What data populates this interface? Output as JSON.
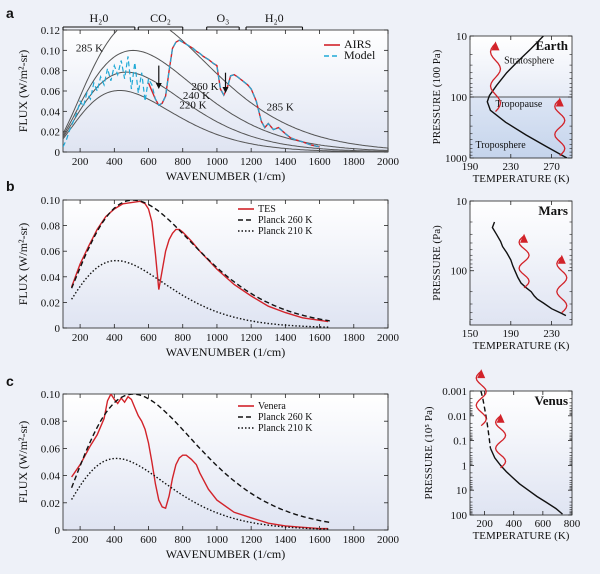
{
  "panel_labels": [
    "a",
    "b",
    "c"
  ],
  "bands": [
    {
      "label": "H₂0",
      "x1": 100,
      "x2": 520
    },
    {
      "label": "CO₂",
      "x1": 540,
      "x2": 800
    },
    {
      "label": "O₃",
      "x1": 940,
      "x2": 1130
    },
    {
      "label": "H₂0",
      "x1": 1170,
      "x2": 1500
    }
  ],
  "colors": {
    "red": "#d2232a",
    "cyan": "#1fa9d6",
    "black": "#111111",
    "gray": "#555555"
  },
  "chart_data": [
    {
      "id": "earth-spectrum",
      "type": "line",
      "xlabel": "WAVENUMBER (1/cm)",
      "ylabel": "FLUX (W/m²-sr)",
      "xlim": [
        100,
        2000
      ],
      "ylim": [
        0,
        0.12
      ],
      "xticks": [
        200,
        400,
        600,
        800,
        1000,
        1200,
        1400,
        1600,
        1800,
        2000
      ],
      "yticks": [
        0,
        0.02,
        0.04,
        0.06,
        0.08,
        0.1,
        0.12
      ],
      "ytick_labels": [
        "0",
        "0.02",
        "0.04",
        "0.06",
        "0.08",
        "0.10",
        "0.12"
      ],
      "planck_curves": [
        285,
        260,
        240,
        220
      ],
      "planck_labels": [
        {
          "text": "285 K",
          "x": 255,
          "y": 0.099
        },
        {
          "text": "260 K",
          "x": 930,
          "y": 0.061
        },
        {
          "text": "240 K",
          "x": 880,
          "y": 0.052
        },
        {
          "text": "220 K",
          "x": 860,
          "y": 0.043
        },
        {
          "text": "285 K",
          "x": 1370,
          "y": 0.041
        }
      ],
      "arrows": [
        {
          "x": 660,
          "y_from": 0.085,
          "y_to": 0.062
        },
        {
          "x": 1050,
          "y_from": 0.078,
          "y_to": 0.058
        }
      ],
      "legend": [
        "AIRS",
        "Model"
      ],
      "series": [
        {
          "name": "AIRS",
          "color": "#d2232a",
          "style": "solid",
          "x": [
            600,
            620,
            640,
            660,
            680,
            700,
            720,
            740,
            760,
            780,
            800,
            820,
            840,
            860,
            880,
            900,
            920,
            950,
            980,
            1000,
            1020,
            1040,
            1060,
            1080,
            1100,
            1120,
            1150,
            1180,
            1200,
            1230,
            1260,
            1280,
            1300,
            1330,
            1360,
            1400,
            1430,
            1460,
            1500,
            1550,
            1600
          ],
          "y": [
            0.068,
            0.06,
            0.052,
            0.046,
            0.048,
            0.055,
            0.08,
            0.102,
            0.108,
            0.11,
            0.108,
            0.106,
            0.104,
            0.102,
            0.099,
            0.097,
            0.094,
            0.091,
            0.087,
            0.085,
            0.062,
            0.056,
            0.063,
            0.075,
            0.076,
            0.074,
            0.07,
            0.066,
            0.062,
            0.05,
            0.03,
            0.024,
            0.028,
            0.022,
            0.024,
            0.018,
            0.014,
            0.012,
            0.01,
            0.007,
            0.005
          ]
        },
        {
          "name": "Model",
          "color": "#1fa9d6",
          "style": "dashed",
          "x": [
            100,
            120,
            140,
            160,
            180,
            200,
            220,
            240,
            260,
            280,
            300,
            320,
            340,
            360,
            380,
            400,
            420,
            440,
            460,
            480,
            500,
            520,
            540,
            560,
            580,
            600,
            620,
            640,
            660,
            680,
            700,
            720,
            740,
            760,
            780,
            800,
            820,
            840,
            860,
            880,
            900,
            920,
            950,
            980,
            1000,
            1020,
            1040,
            1060,
            1080,
            1100,
            1120,
            1150,
            1180,
            1200,
            1230,
            1260,
            1280,
            1300,
            1330,
            1360,
            1400,
            1430,
            1460,
            1500,
            1550,
            1600
          ],
          "y": [
            0.005,
            0.012,
            0.022,
            0.03,
            0.038,
            0.05,
            0.045,
            0.058,
            0.052,
            0.068,
            0.06,
            0.074,
            0.066,
            0.082,
            0.07,
            0.085,
            0.076,
            0.09,
            0.072,
            0.094,
            0.062,
            0.088,
            0.058,
            0.078,
            0.05,
            0.072,
            0.066,
            0.052,
            0.046,
            0.048,
            0.055,
            0.08,
            0.102,
            0.108,
            0.11,
            0.108,
            0.106,
            0.104,
            0.102,
            0.099,
            0.097,
            0.094,
            0.091,
            0.087,
            0.085,
            0.062,
            0.056,
            0.063,
            0.075,
            0.076,
            0.074,
            0.07,
            0.066,
            0.062,
            0.05,
            0.03,
            0.024,
            0.028,
            0.022,
            0.024,
            0.018,
            0.014,
            0.012,
            0.01,
            0.007,
            0.005
          ]
        }
      ]
    },
    {
      "id": "earth-profile",
      "type": "line",
      "title": "Earth",
      "xlabel": "TEMPERATURE (K)",
      "ylabel": "PRESSURE (100 Pa)",
      "xlim": [
        190,
        290
      ],
      "ylim": [
        10,
        1000
      ],
      "yscale": "log",
      "xticks": [
        190,
        230,
        270
      ],
      "yticks": [
        10,
        100,
        1000
      ],
      "annotations": [
        {
          "text": "Stratosphere",
          "x": 248,
          "y": 28,
          "color": "#111111"
        },
        {
          "text": "Tropopause",
          "x": 238,
          "y": 145,
          "color": "#d2232a"
        },
        {
          "text": "Troposphere",
          "x": 220,
          "y": 680,
          "color": "#111111"
        }
      ],
      "tropopause_pressure": 100,
      "series": [
        {
          "name": "",
          "color": "#111111",
          "x": [
            262,
            250,
            238,
            226,
            216,
            209,
            207,
            210,
            225,
            245,
            265,
            285
          ],
          "y": [
            10,
            16,
            25,
            40,
            65,
            95,
            120,
            165,
            260,
            420,
            650,
            1000
          ]
        }
      ]
    },
    {
      "id": "mars-spectrum",
      "type": "line",
      "xlabel": "WAVENUMBER (1/cm)",
      "ylabel": "FLUX (W/m²-sr)",
      "xlim": [
        100,
        2000
      ],
      "ylim": [
        0,
        0.1
      ],
      "xticks": [
        200,
        400,
        600,
        800,
        1000,
        1200,
        1400,
        1600,
        1800,
        2000
      ],
      "yticks": [
        0,
        0.02,
        0.04,
        0.06,
        0.08,
        0.1
      ],
      "ytick_labels": [
        "0",
        "0.02",
        "0.04",
        "0.06",
        "0.08",
        "0.10"
      ],
      "legend": [
        "TES",
        "Planck 260 K",
        "Planck 210 K"
      ],
      "series": [
        {
          "name": "TES",
          "color": "#d2232a",
          "style": "solid",
          "x": [
            150,
            200,
            250,
            300,
            350,
            400,
            450,
            500,
            550,
            580,
            600,
            620,
            640,
            660,
            680,
            700,
            720,
            740,
            760,
            780,
            800,
            850,
            900,
            950,
            1000,
            1100,
            1200,
            1300,
            1400,
            1500,
            1600,
            1650
          ],
          "y": [
            0.032,
            0.05,
            0.064,
            0.077,
            0.087,
            0.093,
            0.097,
            0.098,
            0.099,
            0.097,
            0.093,
            0.083,
            0.058,
            0.03,
            0.045,
            0.06,
            0.069,
            0.074,
            0.077,
            0.077,
            0.075,
            0.068,
            0.06,
            0.053,
            0.046,
            0.034,
            0.025,
            0.017,
            0.012,
            0.008,
            0.006,
            0.005
          ]
        },
        {
          "name": "Planck 260 K",
          "color": "#111111",
          "style": "dashed",
          "temperature": 260
        },
        {
          "name": "Planck 210 K",
          "color": "#111111",
          "style": "dotted",
          "temperature": 210
        }
      ]
    },
    {
      "id": "mars-profile",
      "type": "line",
      "title": "Mars",
      "xlabel": "TEMPERATURE (K)",
      "ylabel": "PRESSURE (Pa)",
      "xlim": [
        150,
        250
      ],
      "ylim": [
        10,
        600
      ],
      "yscale": "log",
      "xticks": [
        150,
        190,
        230
      ],
      "yticks": [
        10,
        100
      ],
      "series": [
        {
          "name": "",
          "color": "#111111",
          "x": [
            174,
            172,
            176,
            180,
            182,
            186,
            190,
            192,
            194,
            197,
            200,
            205,
            210,
            213,
            216,
            222,
            230,
            240,
            244
          ],
          "y": [
            20,
            24,
            30,
            38,
            45,
            55,
            70,
            85,
            100,
            125,
            150,
            175,
            200,
            230,
            255,
            290,
            350,
            410,
            440
          ]
        }
      ]
    },
    {
      "id": "venus-spectrum",
      "type": "line",
      "xlabel": "WAVENUMBER (1/cm)",
      "ylabel": "FLUX (W/m²-sr)",
      "xlim": [
        100,
        2000
      ],
      "ylim": [
        0,
        0.1
      ],
      "xticks": [
        200,
        400,
        600,
        800,
        1000,
        1200,
        1400,
        1600,
        1800,
        2000
      ],
      "yticks": [
        0,
        0.02,
        0.04,
        0.06,
        0.08,
        0.1
      ],
      "ytick_labels": [
        "0",
        "0.02",
        "0.04",
        "0.06",
        "0.08",
        "0.10"
      ],
      "legend": [
        "Venera",
        "Planck 260 K",
        "Planck 210 K"
      ],
      "series": [
        {
          "name": "Venera",
          "color": "#d2232a",
          "style": "solid",
          "x": [
            150,
            200,
            260,
            300,
            340,
            360,
            380,
            400,
            420,
            440,
            460,
            480,
            500,
            520,
            540,
            560,
            580,
            600,
            620,
            640,
            660,
            680,
            700,
            720,
            740,
            760,
            780,
            800,
            820,
            850,
            880,
            900,
            950,
            1000,
            1100,
            1200,
            1300,
            1400,
            1500,
            1600,
            1650
          ],
          "y": [
            0.039,
            0.048,
            0.062,
            0.07,
            0.082,
            0.095,
            0.1,
            0.096,
            0.093,
            0.097,
            0.094,
            0.098,
            0.096,
            0.09,
            0.084,
            0.08,
            0.074,
            0.064,
            0.05,
            0.034,
            0.022,
            0.017,
            0.016,
            0.025,
            0.038,
            0.048,
            0.053,
            0.055,
            0.055,
            0.052,
            0.048,
            0.042,
            0.03,
            0.022,
            0.013,
            0.009,
            0.005,
            0.003,
            0.002,
            0.001,
            0.001
          ]
        },
        {
          "name": "Planck 260 K",
          "color": "#111111",
          "style": "dashed",
          "temperature": 260
        },
        {
          "name": "Planck 210 K",
          "color": "#111111",
          "style": "dotted",
          "temperature": 210
        }
      ]
    },
    {
      "id": "venus-profile",
      "type": "line",
      "title": "Venus",
      "xlabel": "TEMPERATURE (K)",
      "ylabel": "PRESSURE (10⁵ Pa)",
      "xlim": [
        100,
        800
      ],
      "ylim": [
        0.001,
        100
      ],
      "yscale": "log",
      "xticks": [
        200,
        400,
        600,
        800
      ],
      "yticks": [
        0.001,
        0.01,
        0.1,
        1,
        10,
        100
      ],
      "ytick_labels": [
        "0.001",
        "0.01",
        "0.1",
        "1",
        "10",
        "100"
      ],
      "series": [
        {
          "name": "",
          "color": "#111111",
          "style": "dashed",
          "x": [
            175,
            188,
            200,
            212,
            222,
            232,
            240
          ],
          "y": [
            0.001,
            0.002,
            0.005,
            0.012,
            0.03,
            0.08,
            0.2
          ]
        },
        {
          "name": "",
          "color": "#111111",
          "style": "solid",
          "x": [
            240,
            270,
            310,
            350,
            390,
            440,
            500,
            560,
            620,
            690,
            735
          ],
          "y": [
            0.2,
            0.5,
            1.0,
            1.8,
            3.0,
            5.5,
            10,
            18,
            30,
            55,
            92
          ]
        }
      ]
    }
  ]
}
